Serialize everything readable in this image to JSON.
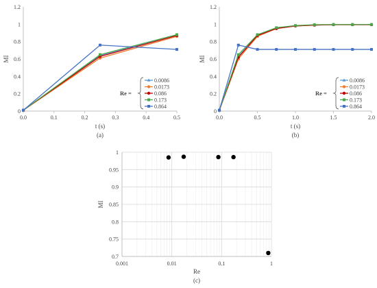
{
  "chart_data": [
    {
      "type": "line",
      "panel_label": "(a)",
      "xlabel": "t (s)",
      "ylabel": "MI",
      "xlim": [
        0,
        0.5
      ],
      "ylim": [
        0,
        1.2
      ],
      "xticks": [
        "0.0",
        "0.1",
        "0.2",
        "0.3",
        "0.4",
        "0.5"
      ],
      "yticks": [
        "0",
        "0.2",
        "0.4",
        "0.6",
        "0.8",
        "1",
        "1.2"
      ],
      "grid": "none",
      "legend_prefix": "Re =",
      "legend_placement": "right",
      "x": [
        0,
        0.25,
        0.5
      ],
      "series": [
        {
          "name": "0.0086",
          "color": "#5b9bd5",
          "marker": "triangle",
          "values": [
            0.01,
            0.64,
            0.87
          ]
        },
        {
          "name": "0.0173",
          "color": "#ed7d31",
          "marker": "circle",
          "values": [
            0.01,
            0.61,
            0.86
          ]
        },
        {
          "name": "0.086",
          "color": "#c00000",
          "marker": "circle",
          "values": [
            0.01,
            0.63,
            0.87
          ]
        },
        {
          "name": "0.173",
          "color": "#4aa84a",
          "marker": "square",
          "values": [
            0.01,
            0.65,
            0.88
          ]
        },
        {
          "name": "0.864",
          "color": "#4472c4",
          "marker": "square",
          "values": [
            0.01,
            0.76,
            0.71
          ]
        }
      ]
    },
    {
      "type": "line",
      "panel_label": "(b)",
      "xlabel": "t (s)",
      "ylabel": "MI",
      "xlim": [
        0,
        2.0
      ],
      "ylim": [
        0,
        1.2
      ],
      "xticks": [
        "0.0",
        "0.5",
        "1.0",
        "1.5",
        "2.0"
      ],
      "yticks": [
        "0",
        "0.2",
        "0.4",
        "0.6",
        "0.8",
        "1",
        "1.2"
      ],
      "grid": "none",
      "legend_prefix": "Re =",
      "legend_placement": "bottom-right",
      "x": [
        0,
        0.25,
        0.5,
        0.75,
        1.0,
        1.25,
        1.5,
        1.75,
        2.0
      ],
      "series": [
        {
          "name": "0.0086",
          "color": "#5b9bd5",
          "marker": "triangle",
          "values": [
            0.01,
            0.63,
            0.87,
            0.95,
            0.98,
            0.99,
            0.995,
            0.995,
            0.995
          ]
        },
        {
          "name": "0.0173",
          "color": "#ed7d31",
          "marker": "circle",
          "values": [
            0.01,
            0.6,
            0.86,
            0.95,
            0.98,
            0.99,
            0.995,
            0.995,
            0.995
          ]
        },
        {
          "name": "0.086",
          "color": "#c00000",
          "marker": "circle",
          "values": [
            0.01,
            0.62,
            0.87,
            0.95,
            0.98,
            0.99,
            0.995,
            0.995,
            0.995
          ]
        },
        {
          "name": "0.173",
          "color": "#4aa84a",
          "marker": "square",
          "values": [
            0.01,
            0.65,
            0.88,
            0.96,
            0.985,
            0.995,
            0.997,
            0.997,
            0.997
          ]
        },
        {
          "name": "0.864",
          "color": "#4472c4",
          "marker": "square",
          "values": [
            0.01,
            0.76,
            0.71,
            0.71,
            0.71,
            0.71,
            0.71,
            0.71,
            0.71
          ]
        }
      ]
    },
    {
      "type": "scatter",
      "panel_label": "(c)",
      "xlabel": "Re",
      "ylabel": "MI",
      "xscale": "log",
      "xlim": [
        0.001,
        1
      ],
      "ylim": [
        0.7,
        1
      ],
      "xticks": [
        "0.001",
        "0.01",
        "0.1",
        "1"
      ],
      "yticks": [
        "0.7",
        "0.75",
        "0.8",
        "0.85",
        "0.9",
        "0.95",
        "1"
      ],
      "grid": "on",
      "points": [
        {
          "x": 0.0086,
          "y": 0.985
        },
        {
          "x": 0.0173,
          "y": 0.987
        },
        {
          "x": 0.086,
          "y": 0.986
        },
        {
          "x": 0.173,
          "y": 0.986
        },
        {
          "x": 0.864,
          "y": 0.71
        }
      ]
    }
  ]
}
